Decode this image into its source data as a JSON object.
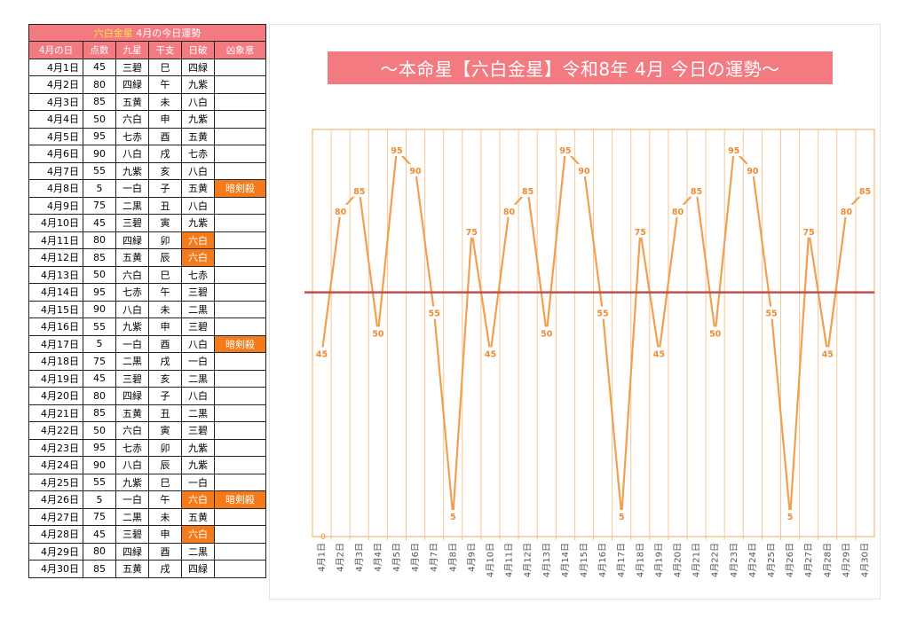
{
  "table": {
    "title_star": "六白金星",
    "title_rest": "4月の今日運勢",
    "headers": [
      "4月の日",
      "点数",
      "九星",
      "干支",
      "日破",
      "凶象意"
    ],
    "rows": [
      {
        "date": "4月1日",
        "score": "45",
        "star": "三碧",
        "eto": "巳",
        "nichiha": "四緑",
        "kyo": "",
        "hl_nichiha": false
      },
      {
        "date": "4月2日",
        "score": "80",
        "star": "四緑",
        "eto": "午",
        "nichiha": "九紫",
        "kyo": "",
        "hl_nichiha": false
      },
      {
        "date": "4月3日",
        "score": "85",
        "star": "五黄",
        "eto": "未",
        "nichiha": "八白",
        "kyo": "",
        "hl_nichiha": false
      },
      {
        "date": "4月4日",
        "score": "50",
        "star": "六白",
        "eto": "申",
        "nichiha": "九紫",
        "kyo": "",
        "hl_nichiha": false
      },
      {
        "date": "4月5日",
        "score": "95",
        "star": "七赤",
        "eto": "酉",
        "nichiha": "五黄",
        "kyo": "",
        "hl_nichiha": false
      },
      {
        "date": "4月6日",
        "score": "90",
        "star": "八白",
        "eto": "戌",
        "nichiha": "七赤",
        "kyo": "",
        "hl_nichiha": false
      },
      {
        "date": "4月7日",
        "score": "55",
        "star": "九紫",
        "eto": "亥",
        "nichiha": "八白",
        "kyo": "",
        "hl_nichiha": false
      },
      {
        "date": "4月8日",
        "score": "5",
        "star": "一白",
        "eto": "子",
        "nichiha": "五黄",
        "kyo": "暗剣殺",
        "hl_nichiha": false
      },
      {
        "date": "4月9日",
        "score": "75",
        "star": "二黒",
        "eto": "丑",
        "nichiha": "八白",
        "kyo": "",
        "hl_nichiha": false
      },
      {
        "date": "4月10日",
        "score": "45",
        "star": "三碧",
        "eto": "寅",
        "nichiha": "九紫",
        "kyo": "",
        "hl_nichiha": false
      },
      {
        "date": "4月11日",
        "score": "80",
        "star": "四緑",
        "eto": "卯",
        "nichiha": "六白",
        "kyo": "",
        "hl_nichiha": true
      },
      {
        "date": "4月12日",
        "score": "85",
        "star": "五黄",
        "eto": "辰",
        "nichiha": "六白",
        "kyo": "",
        "hl_nichiha": true
      },
      {
        "date": "4月13日",
        "score": "50",
        "star": "六白",
        "eto": "巳",
        "nichiha": "七赤",
        "kyo": "",
        "hl_nichiha": false
      },
      {
        "date": "4月14日",
        "score": "95",
        "star": "七赤",
        "eto": "午",
        "nichiha": "三碧",
        "kyo": "",
        "hl_nichiha": false
      },
      {
        "date": "4月15日",
        "score": "90",
        "star": "八白",
        "eto": "未",
        "nichiha": "二黒",
        "kyo": "",
        "hl_nichiha": false
      },
      {
        "date": "4月16日",
        "score": "55",
        "star": "九紫",
        "eto": "申",
        "nichiha": "三碧",
        "kyo": "",
        "hl_nichiha": false
      },
      {
        "date": "4月17日",
        "score": "5",
        "star": "一白",
        "eto": "酉",
        "nichiha": "八白",
        "kyo": "暗剣殺",
        "hl_nichiha": false
      },
      {
        "date": "4月18日",
        "score": "75",
        "star": "二黒",
        "eto": "戌",
        "nichiha": "一白",
        "kyo": "",
        "hl_nichiha": false
      },
      {
        "date": "4月19日",
        "score": "45",
        "star": "三碧",
        "eto": "亥",
        "nichiha": "二黒",
        "kyo": "",
        "hl_nichiha": false
      },
      {
        "date": "4月20日",
        "score": "80",
        "star": "四緑",
        "eto": "子",
        "nichiha": "八白",
        "kyo": "",
        "hl_nichiha": false
      },
      {
        "date": "4月21日",
        "score": "85",
        "star": "五黄",
        "eto": "丑",
        "nichiha": "二黒",
        "kyo": "",
        "hl_nichiha": false
      },
      {
        "date": "4月22日",
        "score": "50",
        "star": "六白",
        "eto": "寅",
        "nichiha": "三碧",
        "kyo": "",
        "hl_nichiha": false
      },
      {
        "date": "4月23日",
        "score": "95",
        "star": "七赤",
        "eto": "卯",
        "nichiha": "九紫",
        "kyo": "",
        "hl_nichiha": false
      },
      {
        "date": "4月24日",
        "score": "90",
        "star": "八白",
        "eto": "辰",
        "nichiha": "九紫",
        "kyo": "",
        "hl_nichiha": false
      },
      {
        "date": "4月25日",
        "score": "55",
        "star": "九紫",
        "eto": "巳",
        "nichiha": "一白",
        "kyo": "",
        "hl_nichiha": false
      },
      {
        "date": "4月26日",
        "score": "5",
        "star": "一白",
        "eto": "午",
        "nichiha": "六白",
        "kyo": "暗剣殺",
        "hl_nichiha": true
      },
      {
        "date": "4月27日",
        "score": "75",
        "star": "二黒",
        "eto": "未",
        "nichiha": "五黄",
        "kyo": "",
        "hl_nichiha": false
      },
      {
        "date": "4月28日",
        "score": "45",
        "star": "三碧",
        "eto": "申",
        "nichiha": "六白",
        "kyo": "",
        "hl_nichiha": true
      },
      {
        "date": "4月29日",
        "score": "80",
        "star": "四緑",
        "eto": "酉",
        "nichiha": "二黒",
        "kyo": "",
        "hl_nichiha": false
      },
      {
        "date": "4月30日",
        "score": "85",
        "star": "五黄",
        "eto": "戌",
        "nichiha": "四緑",
        "kyo": "",
        "hl_nichiha": false
      }
    ]
  },
  "chart_data": {
    "type": "line",
    "title": "～本命星【六白金星】令和8年 4月 今日の運勢～",
    "categories": [
      "4月1日",
      "4月2日",
      "4月3日",
      "4月4日",
      "4月5日",
      "4月6日",
      "4月7日",
      "4月8日",
      "4月9日",
      "4月10日",
      "4月11日",
      "4月12日",
      "4月13日",
      "4月14日",
      "4月15日",
      "4月16日",
      "4月17日",
      "4月18日",
      "4月19日",
      "4月20日",
      "4月21日",
      "4月22日",
      "4月23日",
      "4月24日",
      "4月25日",
      "4月26日",
      "4月27日",
      "4月28日",
      "4月29日",
      "4月30日"
    ],
    "series": [
      {
        "values": [
          45,
          80,
          85,
          50,
          95,
          90,
          55,
          5,
          75,
          45,
          80,
          85,
          50,
          95,
          90,
          55,
          5,
          75,
          45,
          80,
          85,
          50,
          95,
          90,
          55,
          5,
          75,
          45,
          80,
          85
        ]
      }
    ],
    "ylim": [
      0,
      100
    ],
    "y_tick_labels": [
      "0"
    ],
    "reference_line": 60,
    "grid": "vertical",
    "legend": "none",
    "xlabel": "",
    "ylabel": ""
  },
  "colors": {
    "header_pink": "#f47a82",
    "highlight_orange": "#f47a1a",
    "line_orange": "#f0a050",
    "label_orange": "#f08a30",
    "reference_red": "#c0504d",
    "grid": "#f2c894"
  }
}
